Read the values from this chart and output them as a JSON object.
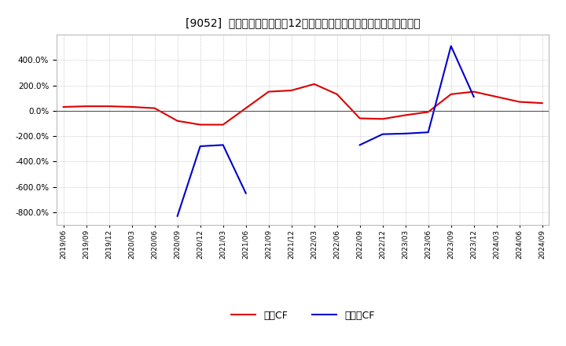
{
  "title": "[9052]  キャッシュフローの12か月移動合計の対前年同期増減率の推移",
  "background_color": "#ffffff",
  "plot_bg_color": "#ffffff",
  "grid_color": "#aaaaaa",
  "zero_line_color": "#555555",
  "ylim": [
    -900,
    600
  ],
  "yticks": [
    -800,
    -600,
    -400,
    -200,
    0,
    200,
    400
  ],
  "legend_labels": [
    "営業CF",
    "フリーCF"
  ],
  "line_colors": [
    "#dd0000",
    "#0000cc"
  ],
  "values_operating": [
    30,
    35,
    35,
    30,
    20,
    -80,
    -110,
    -110,
    20,
    150,
    160,
    210,
    130,
    -60,
    -65,
    -35,
    -10,
    130,
    150,
    110,
    70,
    60
  ],
  "values_free": [
    null,
    null,
    null,
    null,
    null,
    -830,
    -280,
    -270,
    -650,
    null,
    null,
    null,
    null,
    -270,
    -185,
    -180,
    -170,
    510,
    110,
    null,
    null,
    null
  ],
  "x_tick_labels": [
    "2019/06",
    "2019/09",
    "2019/12",
    "2020/03",
    "2020/06",
    "2020/09",
    "2020/12",
    "2021/03",
    "2021/06",
    "2021/09",
    "2021/12",
    "2022/03",
    "2022/06",
    "2022/09",
    "2022/12",
    "2023/03",
    "2023/06",
    "2023/09",
    "2023/12",
    "2024/03",
    "2024/06",
    "2024/09"
  ]
}
